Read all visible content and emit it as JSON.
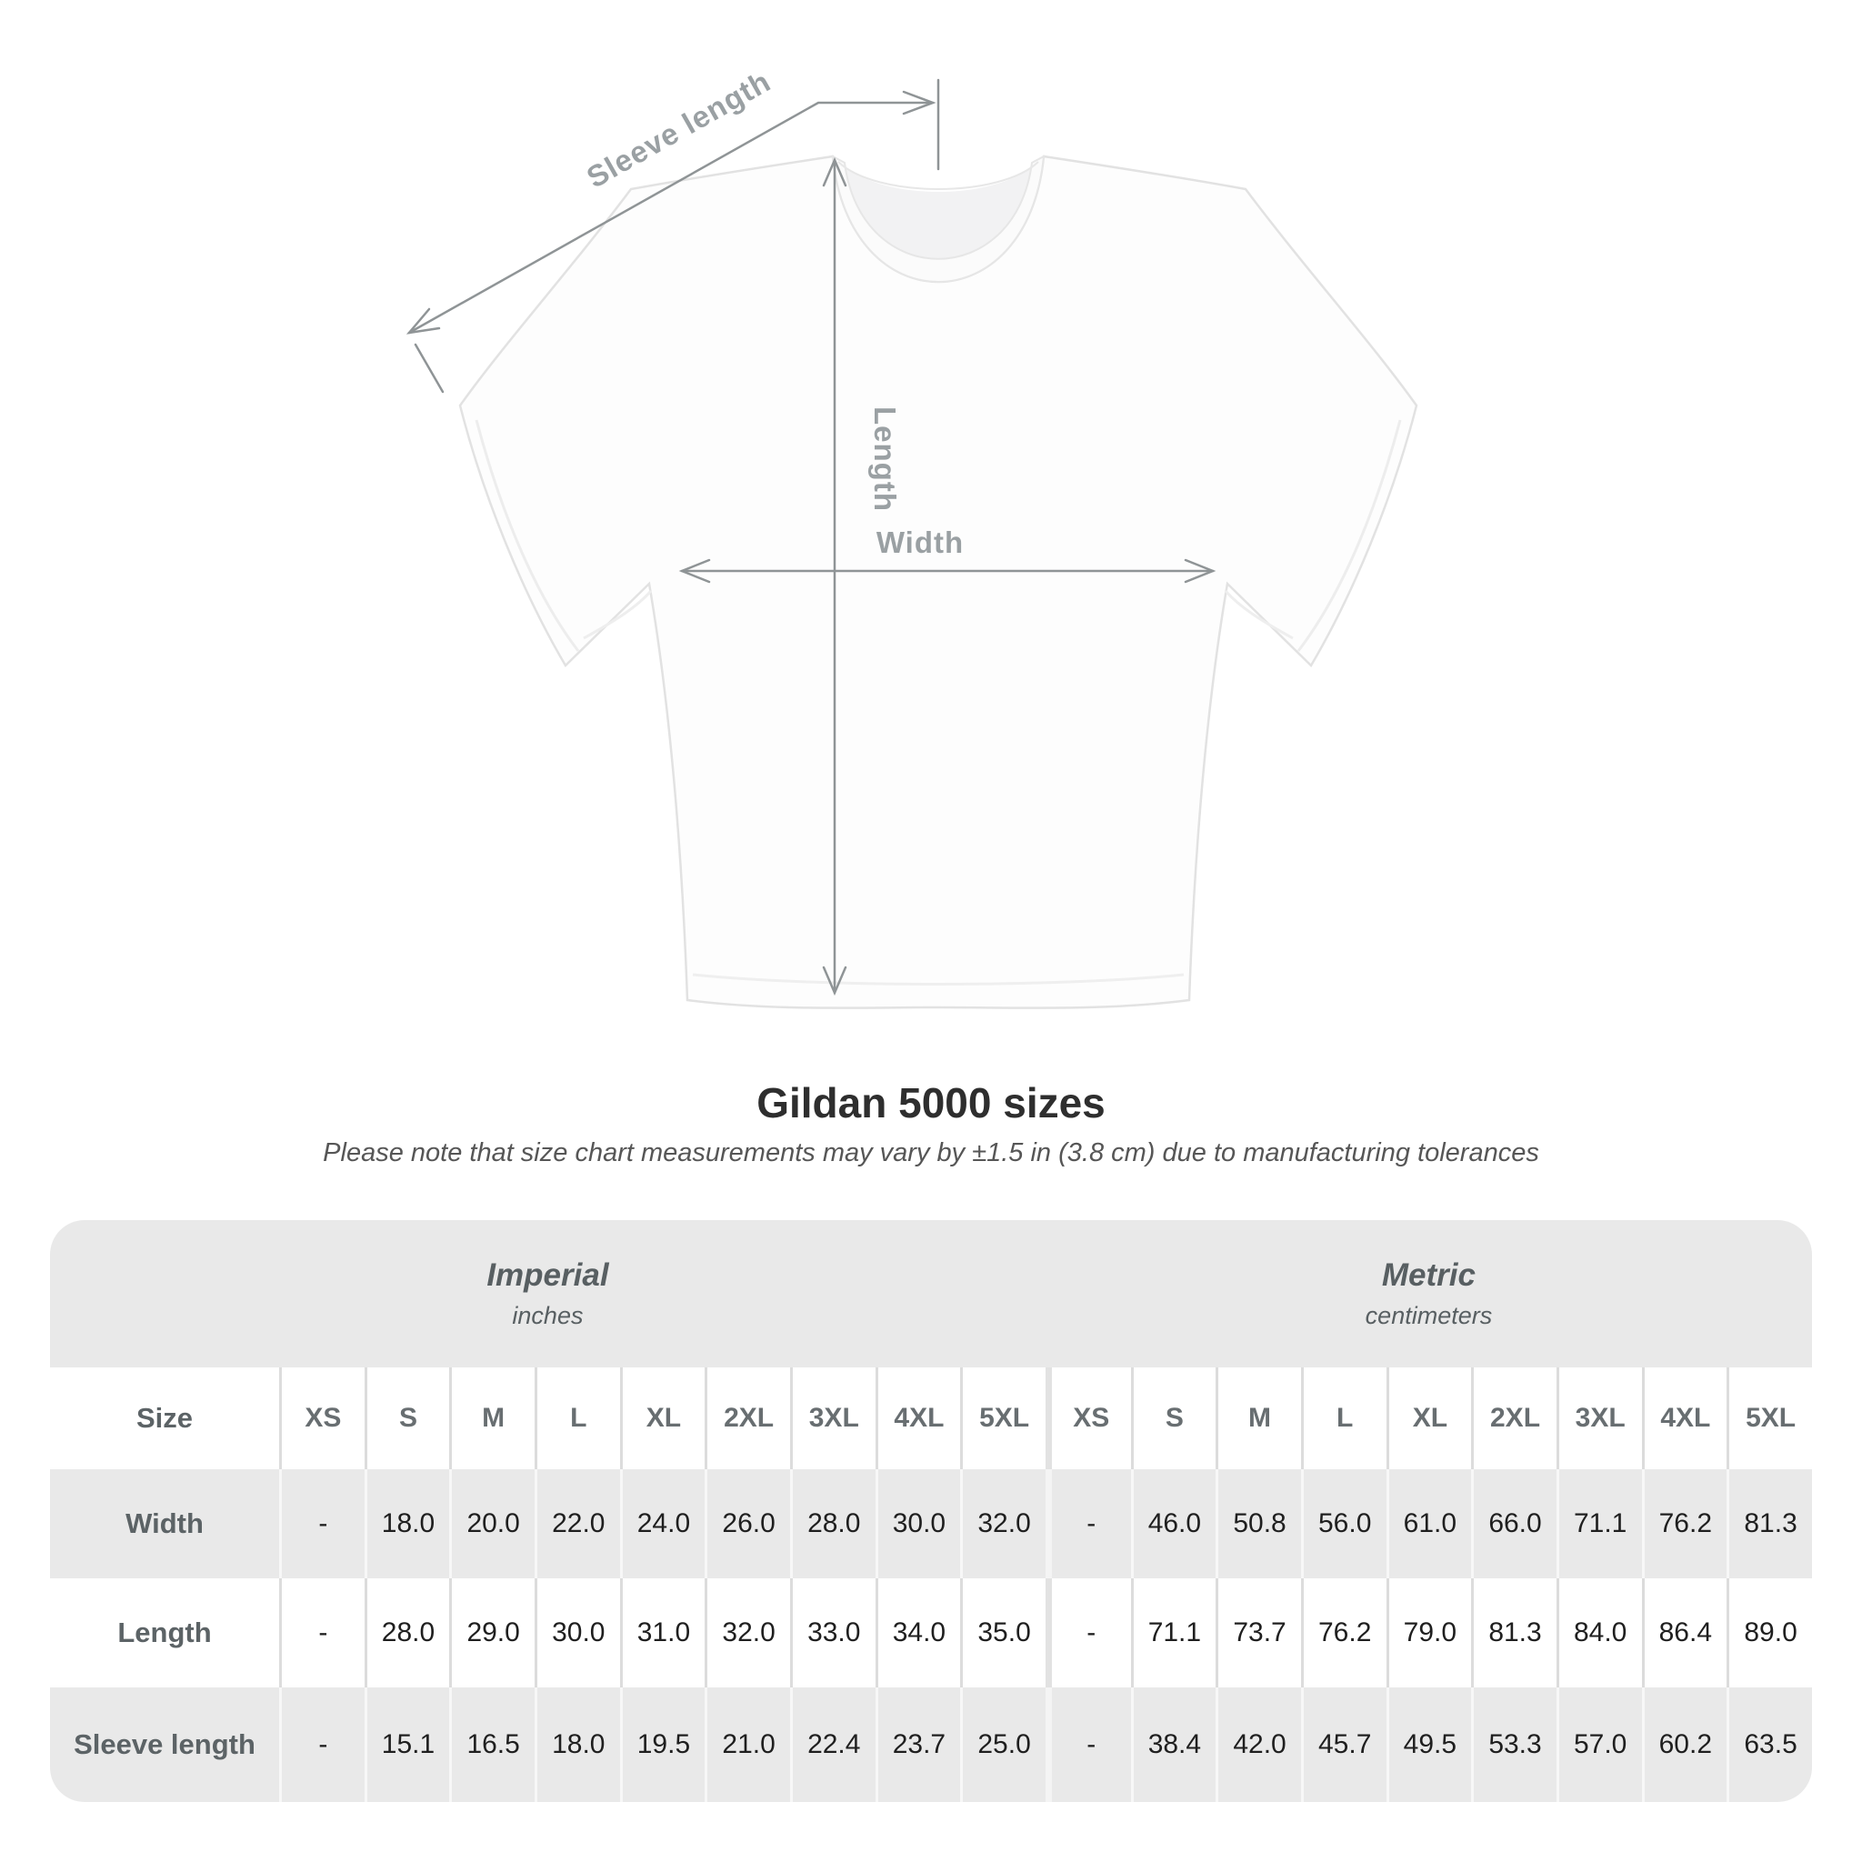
{
  "title": "Gildan 5000 sizes",
  "subtitle": "Please note that size chart measurements may vary by ±1.5 in (3.8 cm) due to manufacturing tolerances",
  "diagram": {
    "sleeve_length_label": "Sleeve length",
    "length_label": "Length",
    "width_label": "Width"
  },
  "chart_data": {
    "type": "table",
    "title": "Gildan 5000 sizes",
    "corner_label": "Size",
    "sections": [
      {
        "label": "Imperial",
        "unit": "inches"
      },
      {
        "label": "Metric",
        "unit": "centimeters"
      }
    ],
    "sizes": [
      "XS",
      "S",
      "M",
      "L",
      "XL",
      "2XL",
      "3XL",
      "4XL",
      "5XL"
    ],
    "rows": [
      {
        "label": "Width",
        "imperial": [
          "-",
          "18.0",
          "20.0",
          "22.0",
          "24.0",
          "26.0",
          "28.0",
          "30.0",
          "32.0"
        ],
        "metric": [
          "-",
          "46.0",
          "50.8",
          "56.0",
          "61.0",
          "66.0",
          "71.1",
          "76.2",
          "81.3"
        ]
      },
      {
        "label": "Length",
        "imperial": [
          "-",
          "28.0",
          "29.0",
          "30.0",
          "31.0",
          "32.0",
          "33.0",
          "34.0",
          "35.0"
        ],
        "metric": [
          "-",
          "71.1",
          "73.7",
          "76.2",
          "79.0",
          "81.3",
          "84.0",
          "86.4",
          "89.0"
        ]
      },
      {
        "label": "Sleeve length",
        "imperial": [
          "-",
          "15.1",
          "16.5",
          "18.0",
          "19.5",
          "21.0",
          "22.4",
          "23.7",
          "25.0"
        ],
        "metric": [
          "-",
          "38.4",
          "42.0",
          "45.7",
          "49.5",
          "53.3",
          "57.0",
          "60.2",
          "63.5"
        ]
      }
    ]
  },
  "colors": {
    "row_gray": "#e9e9e9",
    "annotation_gray": "#9aa0a3",
    "dimension_line_gray": "#8f9496",
    "data_text": "#1f1f1f",
    "label_text": "#5c6366"
  }
}
